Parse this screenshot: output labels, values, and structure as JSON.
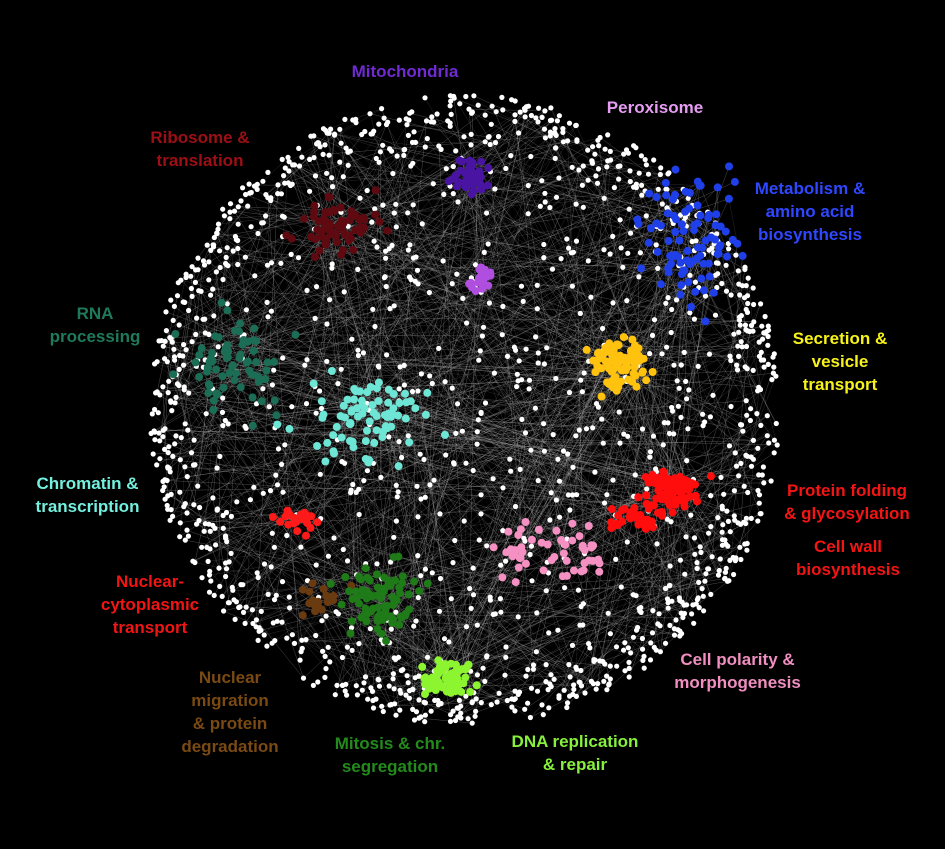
{
  "background": "#000000",
  "node_color": "#ffffff",
  "edge_color": "#bbbbbb",
  "clusters": [
    {
      "id": "mitochondria",
      "lines": [
        "Mitochondria"
      ],
      "color": "#6f2bd1",
      "node_color": "#4a14a3"
    },
    {
      "id": "peroxisome",
      "lines": [
        "Peroxisome"
      ],
      "color": "#e59cf2",
      "node_color": "#b04ee0"
    },
    {
      "id": "ribosome",
      "lines": [
        "Ribosome &",
        "translation"
      ],
      "color": "#9e0f15",
      "node_color": "#5e0a10"
    },
    {
      "id": "metabolism",
      "lines": [
        "Metabolism &",
        "amino acid",
        "biosynthesis"
      ],
      "color": "#2e47ff",
      "node_color": "#1f3fe8"
    },
    {
      "id": "rna",
      "lines": [
        "RNA",
        "processing"
      ],
      "color": "#1f7a5c",
      "node_color": "#1b6e55"
    },
    {
      "id": "secretion",
      "lines": [
        "Secretion &",
        "vesicle",
        "transport"
      ],
      "color": "#f7f21a",
      "node_color": "#ffc20e"
    },
    {
      "id": "chromatin",
      "lines": [
        "Chromatin &",
        "transcription"
      ],
      "color": "#74f0df",
      "node_color": "#6ee6d6"
    },
    {
      "id": "protein_folding",
      "lines": [
        "Protein folding",
        "& glycosylation"
      ],
      "color": "#f31414",
      "node_color": "#ff0d0d"
    },
    {
      "id": "cell_wall",
      "lines": [
        "Cell wall",
        "biosynthesis"
      ],
      "color": "#f31414",
      "node_color": "#ff0d0d"
    },
    {
      "id": "nuclear_transport",
      "lines": [
        "Nuclear-",
        "cytoplasmic",
        "transport"
      ],
      "color": "#f31414",
      "node_color": "#ff1a1a"
    },
    {
      "id": "cell_polarity",
      "lines": [
        "Cell polarity &",
        "morphogenesis"
      ],
      "color": "#f08fc0",
      "node_color": "#f590c2"
    },
    {
      "id": "nuclear_migration",
      "lines": [
        "Nuclear",
        "migration",
        "& protein",
        "degradation"
      ],
      "color": "#7a4a12",
      "node_color": "#6a3a10"
    },
    {
      "id": "mitosis",
      "lines": [
        "Mitosis & chr.",
        "segregation"
      ],
      "color": "#238a1c",
      "node_color": "#1f7a18"
    },
    {
      "id": "dna",
      "lines": [
        "DNA replication",
        "& repair"
      ],
      "color": "#86f03c",
      "node_color": "#8cf530"
    }
  ]
}
